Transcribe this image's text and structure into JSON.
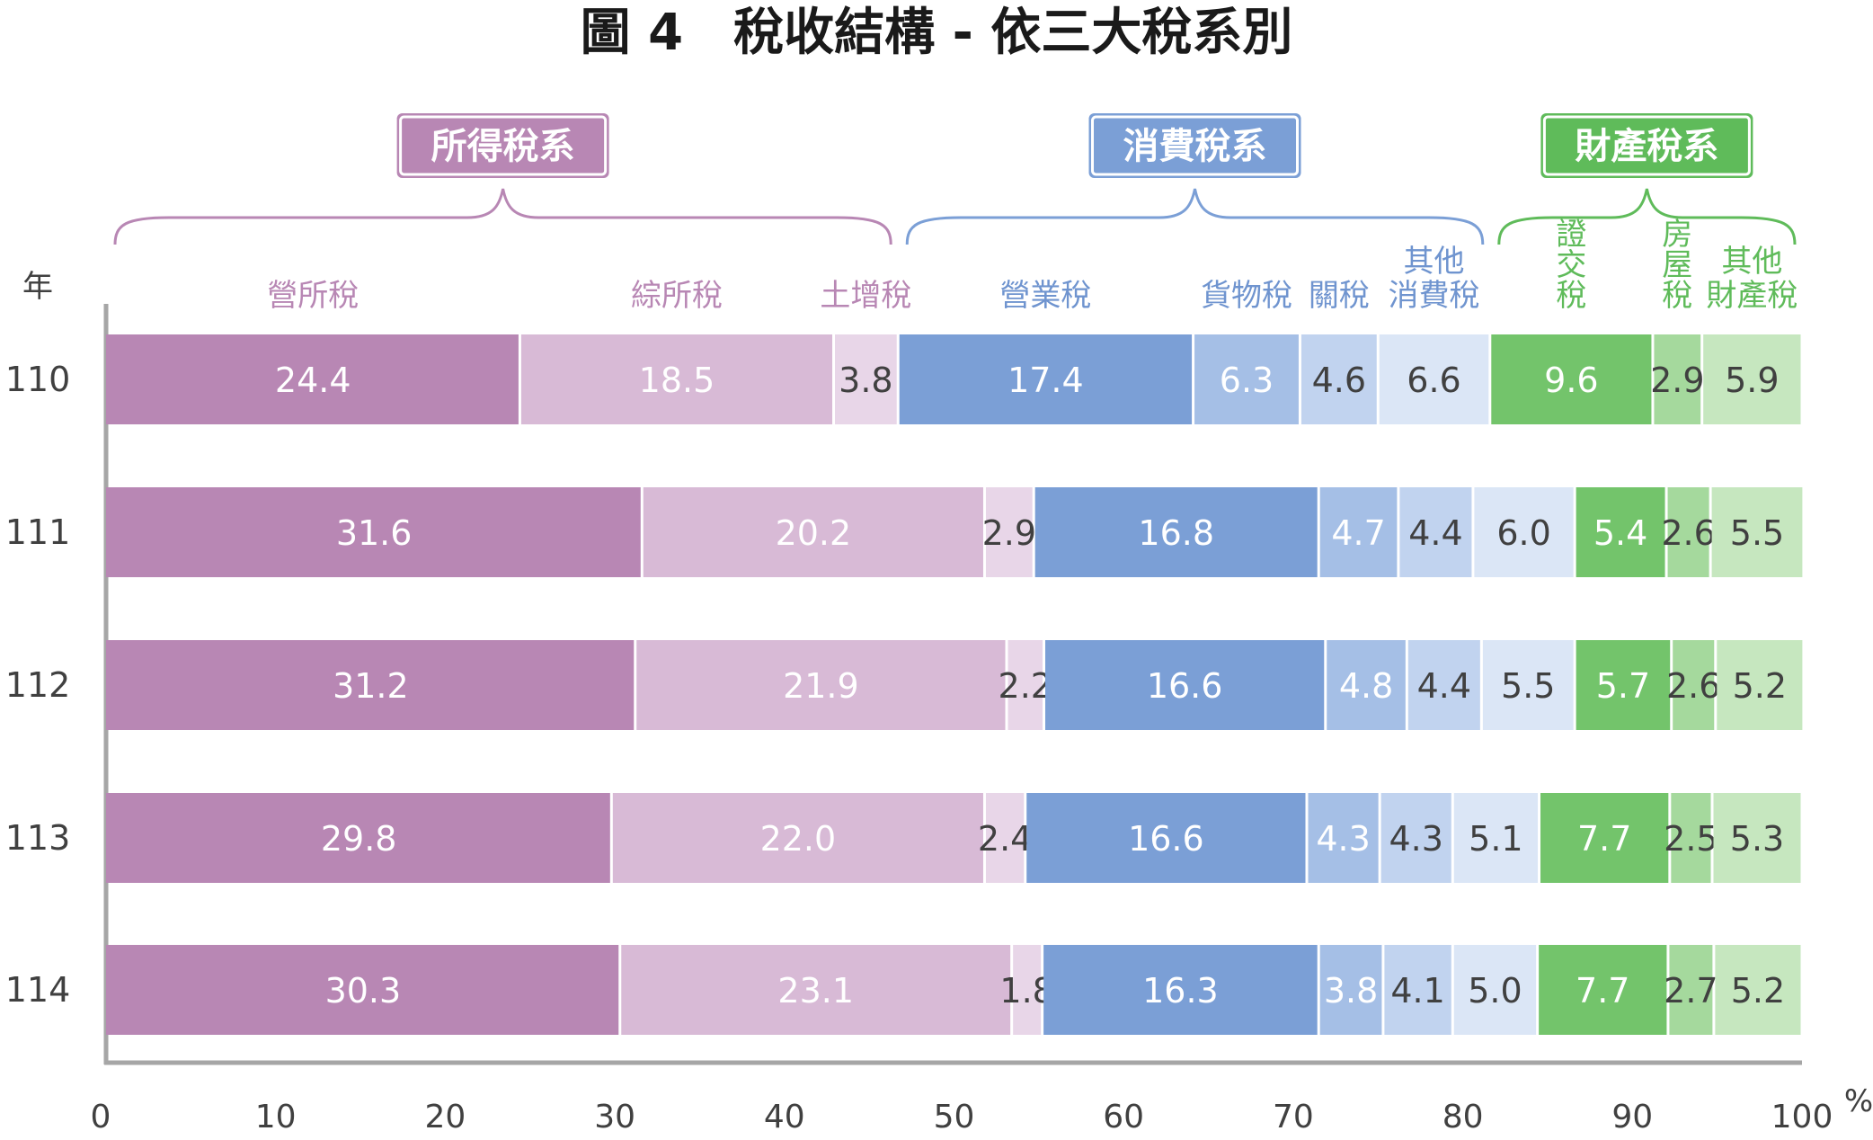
{
  "chart_data": {
    "type": "bar",
    "orientation": "horizontal",
    "stacked": true,
    "title": "圖 4　稅收結構 - 依三大稅系別",
    "row_axis_label": "年",
    "x_unit": "%",
    "xlim": [
      0,
      100
    ],
    "x_ticks": [
      "0",
      "10",
      "20",
      "30",
      "40",
      "50",
      "60",
      "70",
      "80",
      "90",
      "100"
    ],
    "categories": [
      "110",
      "111",
      "112",
      "113",
      "114"
    ],
    "groups": [
      {
        "name": "所得稅系",
        "color": "#b887b4",
        "series": [
          0,
          1,
          2
        ]
      },
      {
        "name": "消費稅系",
        "color": "#7b9fd6",
        "series": [
          3,
          4,
          5,
          6
        ]
      },
      {
        "name": "財產稅系",
        "color": "#5fbb5a",
        "series": [
          7,
          8,
          9
        ]
      }
    ],
    "series": [
      {
        "name": "營所稅",
        "label_lines": [
          "營所稅"
        ],
        "color": "#b887b4",
        "text_color": "#ffffff",
        "label_color": "#b887b4",
        "values": [
          24.4,
          31.6,
          31.2,
          29.8,
          30.3
        ]
      },
      {
        "name": "綜所稅",
        "label_lines": [
          "綜所稅"
        ],
        "color": "#d8bad6",
        "text_color": "#ffffff",
        "label_color": "#b887b4",
        "values": [
          18.5,
          20.2,
          21.9,
          22.0,
          23.1
        ]
      },
      {
        "name": "土增稅",
        "label_lines": [
          "土增稅"
        ],
        "color": "#e8d6e8",
        "text_color": "#404040",
        "label_color": "#b887b4",
        "values": [
          3.8,
          2.9,
          2.2,
          2.4,
          1.8
        ]
      },
      {
        "name": "營業稅",
        "label_lines": [
          "營業稅"
        ],
        "color": "#7b9fd6",
        "text_color": "#ffffff",
        "label_color": "#6f94cf",
        "values": [
          17.4,
          16.8,
          16.6,
          16.6,
          16.3
        ]
      },
      {
        "name": "貨物稅",
        "label_lines": [
          "貨物稅"
        ],
        "color": "#a5bfe6",
        "text_color": "#ffffff",
        "label_color": "#6f94cf",
        "values": [
          6.3,
          4.7,
          4.8,
          4.3,
          3.8
        ]
      },
      {
        "name": "關稅",
        "label_lines": [
          "關稅"
        ],
        "color": "#c1d3ef",
        "text_color": "#404040",
        "label_color": "#6f94cf",
        "values": [
          4.6,
          4.4,
          4.4,
          4.3,
          4.1
        ]
      },
      {
        "name": "其他消費稅",
        "label_lines": [
          "其他",
          "消費稅"
        ],
        "color": "#dbe6f6",
        "text_color": "#404040",
        "label_color": "#6f94cf",
        "values": [
          6.6,
          6.0,
          5.5,
          5.1,
          5.0
        ]
      },
      {
        "name": "證交稅",
        "label_lines": [
          "證",
          "交",
          "稅"
        ],
        "color": "#73c46b",
        "text_color": "#ffffff",
        "label_color": "#5fbb5a",
        "values": [
          9.6,
          5.4,
          5.7,
          7.7,
          7.7
        ]
      },
      {
        "name": "房屋稅",
        "label_lines": [
          "房",
          "屋",
          "稅"
        ],
        "color": "#a5d99d",
        "text_color": "#404040",
        "label_color": "#5fbb5a",
        "values": [
          2.9,
          2.6,
          2.6,
          2.5,
          2.7
        ]
      },
      {
        "name": "其他財產稅",
        "label_lines": [
          "其他",
          "財產稅"
        ],
        "color": "#c6e7bf",
        "text_color": "#404040",
        "label_color": "#5fbb5a",
        "values": [
          5.9,
          5.5,
          5.2,
          5.3,
          5.2
        ]
      }
    ]
  }
}
